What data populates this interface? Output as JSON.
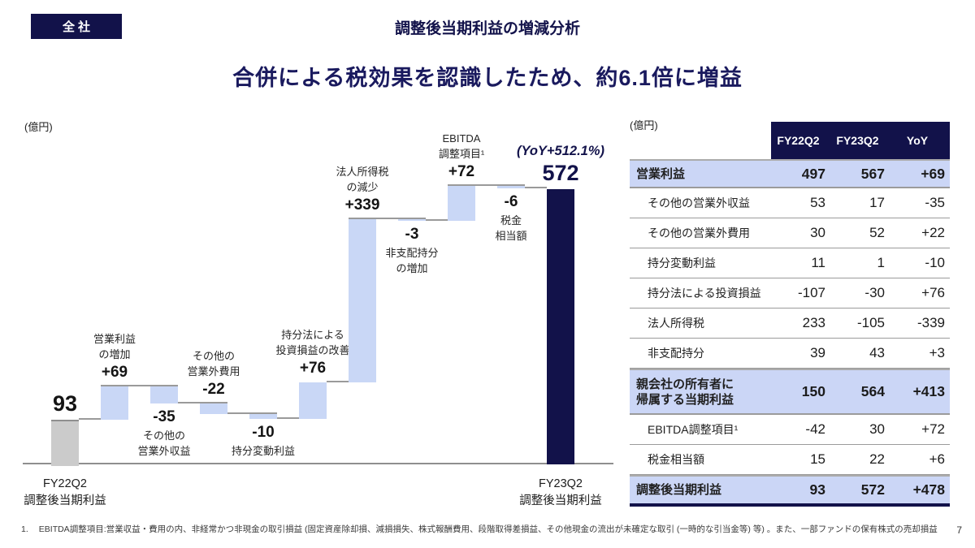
{
  "slide": {
    "badge": "全社",
    "title": "調整後当期利益の増減分析",
    "subtitle": "合併による税効果を認識したため、約6.1倍に増益",
    "chart_unit_label": "(億円)",
    "table_unit_label": "(億円)",
    "footnote_marker": "1.",
    "footnote": "EBITDA調整項目:営業収益・費用の内、非経常かつ非現金の取引損益 (固定資産除却損、減損損失、株式報酬費用、段階取得差損益、その他現金の流出が未確定な取引 (一時的な引当金等) 等) 。また、一部ファンドの保有株式の売却損益",
    "page_number": "7"
  },
  "colors": {
    "navy": "#12124A",
    "light_blue_bar": "#C9D7F6",
    "gray_bar": "#CBCBCB",
    "highlight_row": "#CBD6F6"
  },
  "chart_data": {
    "type": "waterfall",
    "unit": "億円",
    "ylim": [
      0,
      620
    ],
    "grid": false,
    "start_axis_label_lines": [
      "FY22Q2",
      "調整後当期利益"
    ],
    "end_axis_label_lines": [
      "FY23Q2",
      "調整後当期利益"
    ],
    "bars": [
      {
        "kind": "start",
        "value": 93,
        "label": "93",
        "name_lines": [],
        "label_pos": "above"
      },
      {
        "kind": "delta",
        "value": 69,
        "label": "+69",
        "name_lines": [
          "営業利益",
          "の増加"
        ],
        "label_pos": "above"
      },
      {
        "kind": "delta",
        "value": -35,
        "label": "-35",
        "name_lines": [
          "その他の",
          "営業外収益"
        ],
        "label_pos": "below"
      },
      {
        "kind": "delta",
        "value": -22,
        "label": "-22",
        "name_lines": [
          "その他の",
          "営業外費用"
        ],
        "label_pos": "above"
      },
      {
        "kind": "delta",
        "value": -10,
        "label": "-10",
        "name_lines": [
          "持分変動利益"
        ],
        "label_pos": "below"
      },
      {
        "kind": "delta",
        "value": 76,
        "label": "+76",
        "name_lines": [
          "持分法による",
          "投資損益の改善"
        ],
        "label_pos": "above"
      },
      {
        "kind": "delta",
        "value": 339,
        "label": "+339",
        "name_lines": [
          "法人所得税",
          "の減少"
        ],
        "label_pos": "above"
      },
      {
        "kind": "delta",
        "value": -3,
        "label": "-3",
        "name_lines": [
          "非支配持分",
          "の増加"
        ],
        "label_pos": "below"
      },
      {
        "kind": "delta",
        "value": 72,
        "label": "+72",
        "name_lines": [
          "EBITDA",
          "調整項目¹"
        ],
        "label_pos": "above"
      },
      {
        "kind": "delta",
        "value": -6,
        "label": "-6",
        "name_lines": [
          "税金",
          "相当額"
        ],
        "label_pos": "below"
      },
      {
        "kind": "total",
        "value": 572,
        "label": "572",
        "annotation": "(YoY+512.1%)",
        "name_lines": [],
        "label_pos": "above"
      }
    ]
  },
  "table": {
    "headers": [
      "FY22Q2",
      "FY23Q2",
      "YoY"
    ],
    "rows": [
      {
        "label": "営業利益",
        "highlight": true,
        "values": [
          "497",
          "567",
          "+69"
        ]
      },
      {
        "label": "その他の営業外収益",
        "highlight": false,
        "values": [
          "53",
          "17",
          "-35"
        ]
      },
      {
        "label": "その他の営業外費用",
        "highlight": false,
        "values": [
          "30",
          "52",
          "+22"
        ]
      },
      {
        "label": "持分変動利益",
        "highlight": false,
        "values": [
          "11",
          "1",
          "-10"
        ]
      },
      {
        "label": "持分法による投資損益",
        "highlight": false,
        "values": [
          "-107",
          "-30",
          "+76"
        ]
      },
      {
        "label": "法人所得税",
        "highlight": false,
        "values": [
          "233",
          "-105",
          "-339"
        ]
      },
      {
        "label": "非支配持分",
        "highlight": false,
        "values": [
          "39",
          "43",
          "+3"
        ]
      },
      {
        "label": "親会社の所有者に\n帰属する当期利益",
        "highlight": true,
        "values": [
          "150",
          "564",
          "+413"
        ]
      },
      {
        "label": "EBITDA調整項目¹",
        "highlight": false,
        "values": [
          "-42",
          "30",
          "+72"
        ]
      },
      {
        "label": "税金相当額",
        "highlight": false,
        "values": [
          "15",
          "22",
          "+6"
        ]
      },
      {
        "label": "調整後当期利益",
        "highlight": true,
        "values": [
          "93",
          "572",
          "+478"
        ]
      }
    ]
  }
}
